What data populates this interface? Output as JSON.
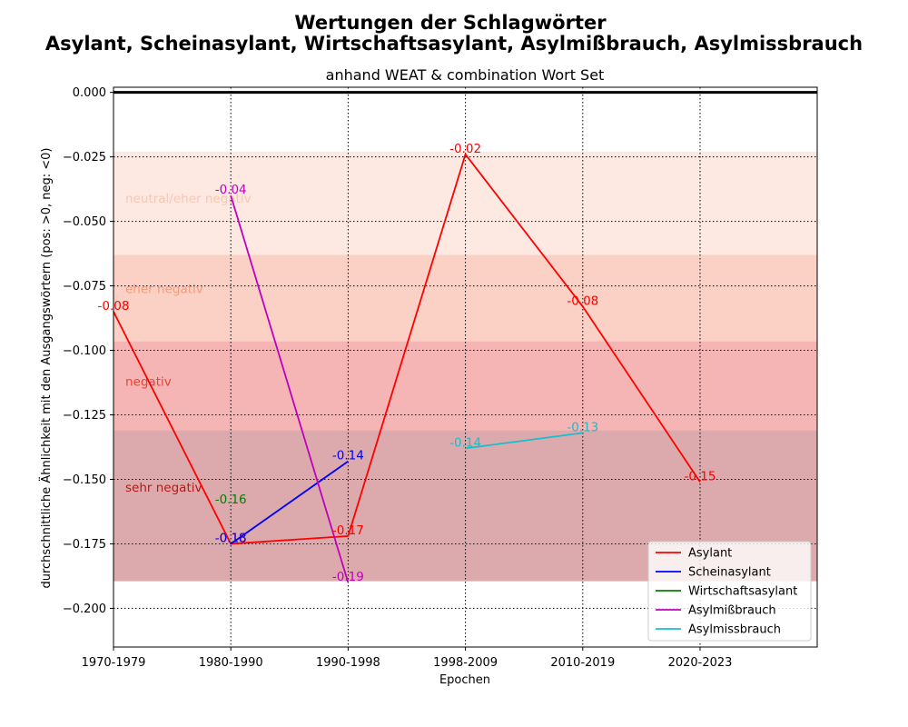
{
  "chart_data": {
    "type": "line",
    "title": "Wertungen der Schlagwörter",
    "title_line2": "Asylant, Scheinasylant, Wirtschaftsasylant, Asylmißbrauch, Asylmissbrauch",
    "subtitle": "anhand WEAT & combination Wort Set",
    "xlabel": "Epochen",
    "ylabel": "durchschnittliche Ähnlichkeit mit den Ausgangswörtern (pos: >0, neg: <0)",
    "categories": [
      "1970-1979",
      "1980-1990",
      "1990-1998",
      "1998-2009",
      "2010-2019",
      "2020-2023"
    ],
    "ylim": [
      -0.215,
      0.002
    ],
    "yticks": [
      "0.000",
      "−0.025",
      "−0.050",
      "−0.075",
      "−0.100",
      "−0.125",
      "−0.150",
      "−0.175",
      "−0.200"
    ],
    "ytick_values": [
      0.0,
      -0.025,
      -0.05,
      -0.075,
      -0.1,
      -0.125,
      -0.15,
      -0.175,
      -0.2
    ],
    "grid": true,
    "legend_position": "bottom-right",
    "bands": [
      {
        "label": "neutral",
        "from": -0.023,
        "to": 0.0,
        "color": "#ffffff",
        "label_color": "#ffffff",
        "label_y": 0.001
      },
      {
        "label": "neutral/eher negativ",
        "from": -0.063,
        "to": -0.023,
        "color": "#fde9e2",
        "label_color": "#f7c7b4",
        "label_y": -0.041
      },
      {
        "label": "eher negativ",
        "from": -0.0965,
        "to": -0.063,
        "color": "#fbd1c6",
        "label_color": "#f59a7a",
        "label_y": -0.076
      },
      {
        "label": "negativ",
        "from": -0.131,
        "to": -0.0965,
        "color": "#f4b5b4",
        "label_color": "#e8413a",
        "label_y": -0.112
      },
      {
        "label": "sehr negativ",
        "from": -0.1895,
        "to": -0.131,
        "color": "#dcaaac",
        "label_color": "#b31a18",
        "label_y": -0.153
      }
    ],
    "series": [
      {
        "name": "Asylant",
        "color": "#ff0000",
        "points": [
          [
            0,
            -0.085
          ],
          [
            1,
            -0.175
          ],
          [
            2,
            -0.172
          ],
          [
            3,
            -0.024
          ],
          [
            4,
            -0.083
          ],
          [
            5,
            -0.151
          ]
        ],
        "labels": [
          "-0.08",
          "-0.18",
          "-0.17",
          "-0.02",
          "-0.08",
          "-0.15"
        ]
      },
      {
        "name": "Scheinasylant",
        "color": "#0000ff",
        "points": [
          [
            1,
            -0.175
          ],
          [
            2,
            -0.143
          ]
        ],
        "labels": [
          "-0.18",
          "-0.14"
        ]
      },
      {
        "name": "Wirtschaftsasylant",
        "color": "#008000",
        "points": [
          [
            1,
            -0.16
          ]
        ],
        "labels": [
          "-0.16"
        ]
      },
      {
        "name": "Asylmißbrauch",
        "color": "#bf00bf",
        "points": [
          [
            1,
            -0.04
          ],
          [
            2,
            -0.19
          ]
        ],
        "labels": [
          "-0.04",
          "-0.19"
        ]
      },
      {
        "name": "Asylmissbrauch",
        "color": "#17becf",
        "points": [
          [
            3,
            -0.138
          ],
          [
            4,
            -0.132
          ]
        ],
        "labels": [
          "-0.14",
          "-0.13"
        ]
      }
    ]
  }
}
